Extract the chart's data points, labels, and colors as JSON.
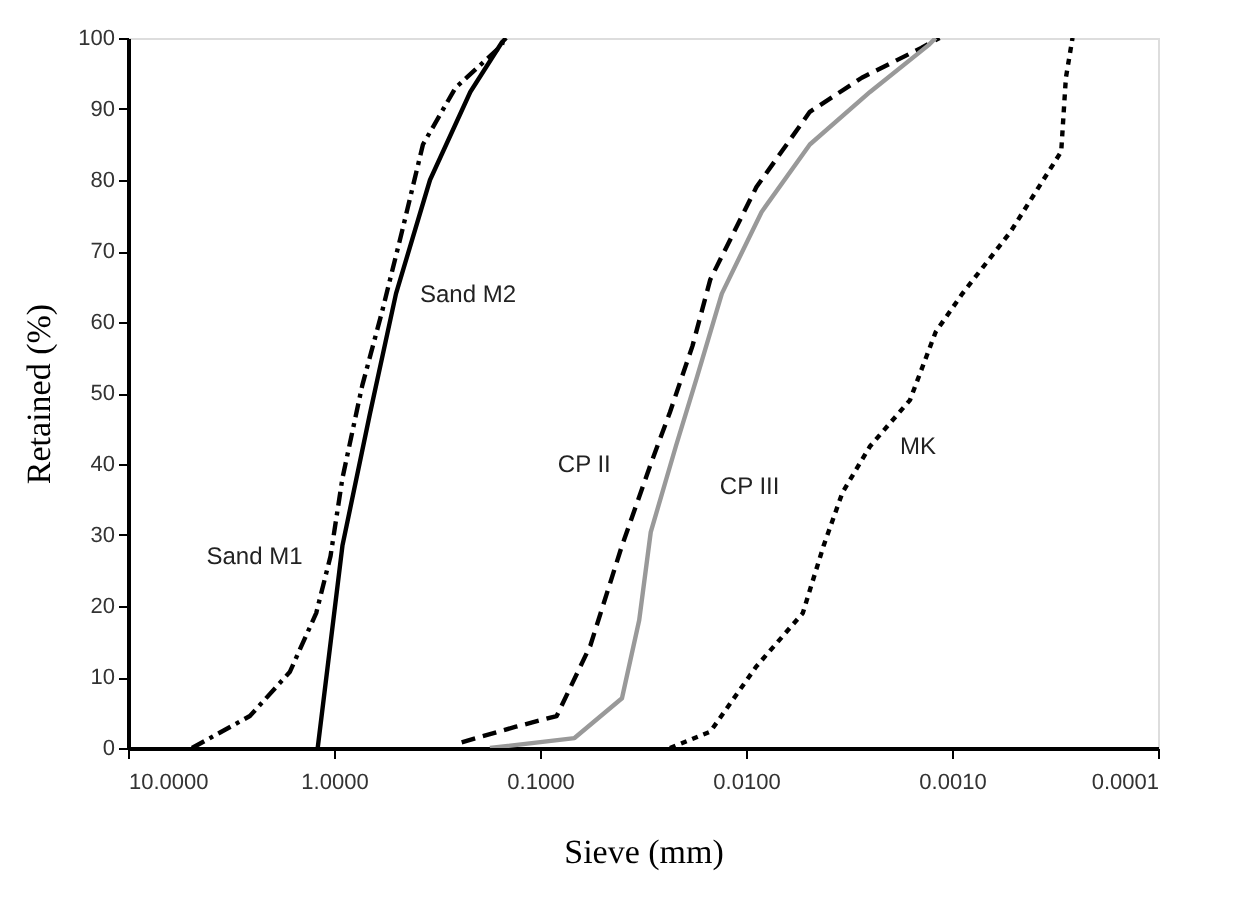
{
  "chart_data": {
    "type": "line",
    "xlabel": "Sieve (mm)",
    "ylabel": "Retained (%)",
    "log": "x",
    "xlim": [
      10,
      0.0001
    ],
    "ylim": [
      0,
      100
    ],
    "xticks": [
      {
        "value": 10,
        "label": "10.0000"
      },
      {
        "value": 1,
        "label": "1.0000"
      },
      {
        "value": 0.1,
        "label": "0.1000"
      },
      {
        "value": 0.01,
        "label": "0.0100"
      },
      {
        "value": 0.001,
        "label": "0.0010"
      },
      {
        "value": 0.0001,
        "label": "0.0001"
      }
    ],
    "yticks": [
      0,
      10,
      20,
      30,
      40,
      50,
      60,
      70,
      80,
      90,
      100
    ],
    "grid": false,
    "marker": "none",
    "series": [
      {
        "name": "Sand M1",
        "color": "#000000",
        "line_style": "dashdot",
        "x": [
          4.89,
          2.56,
          1.64,
          1.22,
          1.04,
          0.91,
          0.73,
          0.585,
          0.468,
          0.37,
          0.257,
          0.153,
          0.15
        ],
        "values": [
          0,
          4.5,
          10.7,
          19,
          27,
          38,
          51,
          61.4,
          72.7,
          85,
          93,
          99,
          100
        ]
      },
      {
        "name": "Sand M2",
        "color": "#000000",
        "line_style": "solid",
        "x": [
          1.2,
          0.91,
          0.67,
          0.5,
          0.342,
          0.218,
          0.153,
          0.146
        ],
        "values": [
          0,
          28.5,
          47,
          64,
          80,
          92.4,
          99.4,
          100
        ]
      },
      {
        "name": "CP II",
        "color": "#000000",
        "line_style": "dashed",
        "x": [
          0.24,
          0.131,
          0.083,
          0.057,
          0.04,
          0.029,
          0.0234,
          0.0182,
          0.0149,
          0.0089,
          0.0049,
          0.00274,
          0.00141,
          0.00115
        ],
        "values": [
          0.8,
          3,
          4.5,
          14.4,
          28.5,
          40,
          47.3,
          56.6,
          66,
          79,
          89.6,
          94.4,
          98.6,
          100
        ]
      },
      {
        "name": "CP III",
        "color": "#999999",
        "line_style": "solid",
        "x": [
          0.175,
          0.068,
          0.04,
          0.033,
          0.029,
          0.0219,
          0.0174,
          0.0131,
          0.0084,
          0.0049,
          0.0025,
          0.0013,
          0.0012
        ],
        "values": [
          0,
          1.4,
          7,
          18,
          30.4,
          42.5,
          52,
          64,
          75.5,
          85,
          92.4,
          99,
          100
        ]
      },
      {
        "name": "MK",
        "color": "#000000",
        "line_style": "dotted",
        "x": [
          0.0234,
          0.0149,
          0.0089,
          0.0053,
          0.0042,
          0.0034,
          0.0025,
          0.0016,
          0.0012,
          0.00089,
          0.00052,
          0.000295,
          0.00028,
          0.00026
        ],
        "values": [
          0,
          2.3,
          11.5,
          19,
          28.5,
          36,
          42.5,
          49,
          58.6,
          64,
          72.7,
          84,
          94.4,
          100
        ]
      }
    ]
  }
}
